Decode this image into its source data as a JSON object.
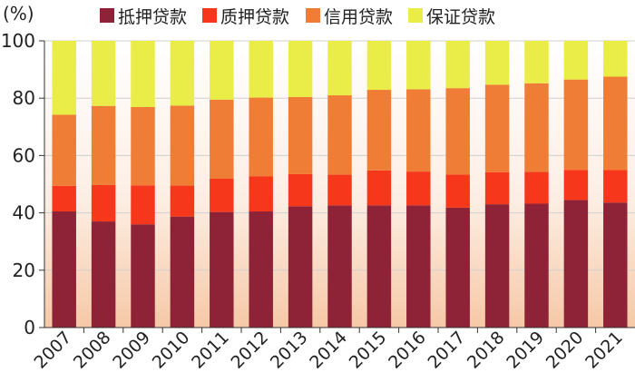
{
  "chart_data": {
    "type": "bar",
    "stacked": true,
    "ylabel": "(%)",
    "ylim": [
      0,
      100
    ],
    "yticks": [
      0,
      20,
      40,
      60,
      80,
      100
    ],
    "legend_position": "top",
    "categories": [
      "2007",
      "2008",
      "2009",
      "2010",
      "2011",
      "2012",
      "2013",
      "2014",
      "2015",
      "2016",
      "2017",
      "2018",
      "2019",
      "2020",
      "2021"
    ],
    "series": [
      {
        "name": "抵押贷款",
        "color": "#8e2236",
        "values": [
          40.5,
          37,
          36,
          38.7,
          40.3,
          40.5,
          42.3,
          42.6,
          42.6,
          42.6,
          41.8,
          43,
          43.2,
          44.5,
          43.6
        ]
      },
      {
        "name": "质押贷款",
        "color": "#f7371c",
        "values": [
          8.9,
          12.7,
          13.6,
          10.8,
          11.6,
          12.3,
          11.2,
          10.7,
          12.2,
          11.8,
          11.6,
          11.2,
          11.1,
          10.5,
          11.3
        ]
      },
      {
        "name": "信用贷款",
        "color": "#ef7d35",
        "values": [
          24.8,
          27.6,
          27.3,
          27.9,
          27.6,
          27.4,
          26.9,
          27.7,
          28.1,
          28.7,
          30.1,
          30.5,
          30.9,
          31.5,
          32.6
        ]
      },
      {
        "name": "保证贷款",
        "color": "#eaed47",
        "values": [
          25.8,
          22.7,
          23.1,
          22.6,
          20.5,
          19.8,
          19.6,
          19,
          17.1,
          16.9,
          16.5,
          15.3,
          14.8,
          13.5,
          12.5
        ]
      }
    ]
  }
}
